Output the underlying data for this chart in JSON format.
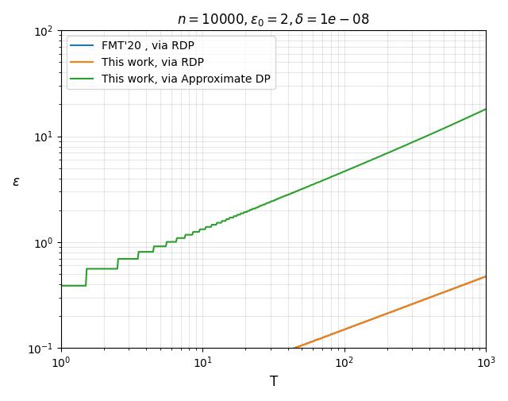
{
  "title": "$n = 10000, \\varepsilon_0 = 2, \\delta = 1e-08$",
  "xlabel": "T",
  "ylabel": "$\\varepsilon$",
  "n": 10000,
  "eps0": 2,
  "delta": 1e-08,
  "xlim_log": [
    0,
    3
  ],
  "ylim_log": [
    -0.7,
    1.7
  ],
  "legend": [
    "FMT'20 , via RDP",
    "This work, via RDP",
    "This work, via Approximate DP"
  ],
  "colors": [
    "#1f77b4",
    "#ff7f0e",
    "#2ca02c"
  ],
  "linewidth": 1.5
}
